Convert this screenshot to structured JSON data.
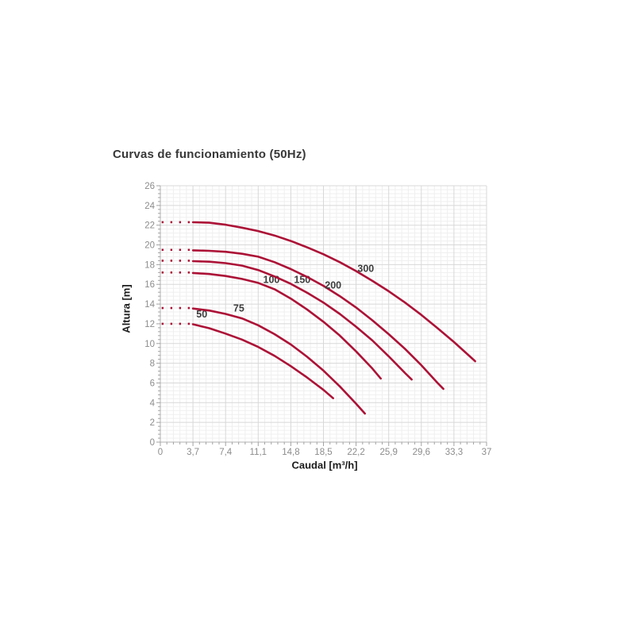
{
  "chart_data": {
    "type": "line",
    "title": "Curvas de funcionamiento (50Hz)",
    "xlabel": "Caudal [m³/h]",
    "ylabel": "Altura [m]",
    "xlim": [
      0,
      37
    ],
    "ylim": [
      0,
      26
    ],
    "grid": "major+minor",
    "legend_position": "none",
    "x_ticks": [
      0,
      3.7,
      7.4,
      11.1,
      14.8,
      18.5,
      22.2,
      25.9,
      29.6,
      33.3,
      37
    ],
    "x_tick_labels": [
      "0",
      "3,7",
      "7,4",
      "11,1",
      "14,8",
      "18,5",
      "22,2",
      "25,9",
      "29,6",
      "33,3",
      "37"
    ],
    "y_ticks": [
      0,
      2,
      4,
      6,
      8,
      10,
      12,
      14,
      16,
      18,
      20,
      22,
      24,
      26
    ],
    "colors": {
      "curve": "#ac1136",
      "curve_label": "#3d3d3d",
      "grid_major": "#d8d8d8",
      "grid_minor": "#efefef",
      "axis": "#b0b0b0",
      "tick": "#a3a3a3",
      "tick_label": "#8c8c8c",
      "title": "#383838",
      "axis_title": "#1c1c1c",
      "background": "#ffffff"
    },
    "series": [
      {
        "name": "50",
        "shutoff_head": 12.0,
        "dotted_segment": [
          [
            0.15,
            12.0
          ],
          [
            3.55,
            12.0
          ]
        ],
        "label_pos": [
          4.7,
          12.95
        ],
        "points": [
          [
            3.7,
            11.95
          ],
          [
            5.55,
            11.55
          ],
          [
            7.4,
            11.0
          ],
          [
            9.25,
            10.4
          ],
          [
            11.1,
            9.65
          ],
          [
            12.95,
            8.75
          ],
          [
            14.8,
            7.7
          ],
          [
            16.65,
            6.55
          ],
          [
            18.5,
            5.3
          ],
          [
            19.6,
            4.45
          ]
        ]
      },
      {
        "name": "75",
        "shutoff_head": 13.6,
        "dotted_segment": [
          [
            0.15,
            13.6
          ],
          [
            3.55,
            13.6
          ]
        ],
        "label_pos": [
          8.9,
          13.55
        ],
        "points": [
          [
            3.7,
            13.55
          ],
          [
            5.55,
            13.35
          ],
          [
            7.4,
            13.0
          ],
          [
            9.25,
            12.55
          ],
          [
            11.1,
            11.85
          ],
          [
            12.95,
            10.95
          ],
          [
            14.8,
            9.9
          ],
          [
            16.65,
            8.65
          ],
          [
            18.5,
            7.25
          ],
          [
            20.35,
            5.65
          ],
          [
            22.2,
            3.9
          ],
          [
            23.2,
            2.9
          ]
        ]
      },
      {
        "name": "100",
        "shutoff_head": 17.2,
        "dotted_segment": [
          [
            0.15,
            17.2
          ],
          [
            3.55,
            17.2
          ]
        ],
        "label_pos": [
          12.6,
          16.45
        ],
        "points": [
          [
            3.7,
            17.15
          ],
          [
            5.55,
            17.05
          ],
          [
            7.4,
            16.85
          ],
          [
            9.25,
            16.55
          ],
          [
            11.1,
            16.15
          ],
          [
            12.95,
            15.5
          ],
          [
            14.8,
            14.55
          ],
          [
            16.65,
            13.45
          ],
          [
            18.5,
            12.2
          ],
          [
            20.35,
            10.8
          ],
          [
            22.2,
            9.2
          ],
          [
            24.05,
            7.45
          ],
          [
            25.0,
            6.45
          ]
        ]
      },
      {
        "name": "150",
        "shutoff_head": 18.4,
        "dotted_segment": [
          [
            0.15,
            18.4
          ],
          [
            3.55,
            18.4
          ]
        ],
        "label_pos": [
          16.1,
          16.45
        ],
        "points": [
          [
            3.7,
            18.35
          ],
          [
            5.55,
            18.3
          ],
          [
            7.4,
            18.15
          ],
          [
            9.25,
            17.9
          ],
          [
            11.1,
            17.45
          ],
          [
            12.95,
            16.8
          ],
          [
            14.8,
            16.05
          ],
          [
            16.65,
            15.15
          ],
          [
            18.5,
            14.15
          ],
          [
            20.35,
            13.0
          ],
          [
            22.2,
            11.7
          ],
          [
            24.05,
            10.3
          ],
          [
            25.9,
            8.7
          ],
          [
            27.75,
            7.0
          ],
          [
            28.5,
            6.35
          ]
        ]
      },
      {
        "name": "200",
        "shutoff_head": 19.5,
        "dotted_segment": [
          [
            0.15,
            19.5
          ],
          [
            3.55,
            19.5
          ]
        ],
        "label_pos": [
          19.6,
          15.9
        ],
        "points": [
          [
            3.7,
            19.45
          ],
          [
            5.55,
            19.4
          ],
          [
            7.4,
            19.3
          ],
          [
            9.25,
            19.1
          ],
          [
            11.1,
            18.8
          ],
          [
            12.95,
            18.25
          ],
          [
            14.8,
            17.55
          ],
          [
            16.65,
            16.75
          ],
          [
            18.5,
            15.85
          ],
          [
            20.35,
            14.8
          ],
          [
            22.2,
            13.65
          ],
          [
            24.05,
            12.35
          ],
          [
            25.9,
            10.95
          ],
          [
            27.75,
            9.45
          ],
          [
            29.6,
            7.8
          ],
          [
            31.45,
            6.0
          ],
          [
            32.1,
            5.4
          ]
        ]
      },
      {
        "name": "300",
        "shutoff_head": 22.3,
        "dotted_segment": [
          [
            0.15,
            22.3
          ],
          [
            3.55,
            22.3
          ]
        ],
        "label_pos": [
          23.3,
          17.6
        ],
        "points": [
          [
            3.7,
            22.3
          ],
          [
            5.55,
            22.25
          ],
          [
            7.4,
            22.05
          ],
          [
            9.25,
            21.75
          ],
          [
            11.1,
            21.4
          ],
          [
            12.95,
            20.95
          ],
          [
            14.8,
            20.4
          ],
          [
            16.65,
            19.75
          ],
          [
            18.5,
            19.05
          ],
          [
            20.35,
            18.25
          ],
          [
            22.2,
            17.35
          ],
          [
            24.05,
            16.35
          ],
          [
            25.9,
            15.3
          ],
          [
            27.75,
            14.15
          ],
          [
            29.6,
            12.9
          ],
          [
            31.45,
            11.55
          ],
          [
            33.3,
            10.15
          ],
          [
            35.15,
            8.65
          ],
          [
            35.7,
            8.2
          ]
        ]
      }
    ]
  }
}
